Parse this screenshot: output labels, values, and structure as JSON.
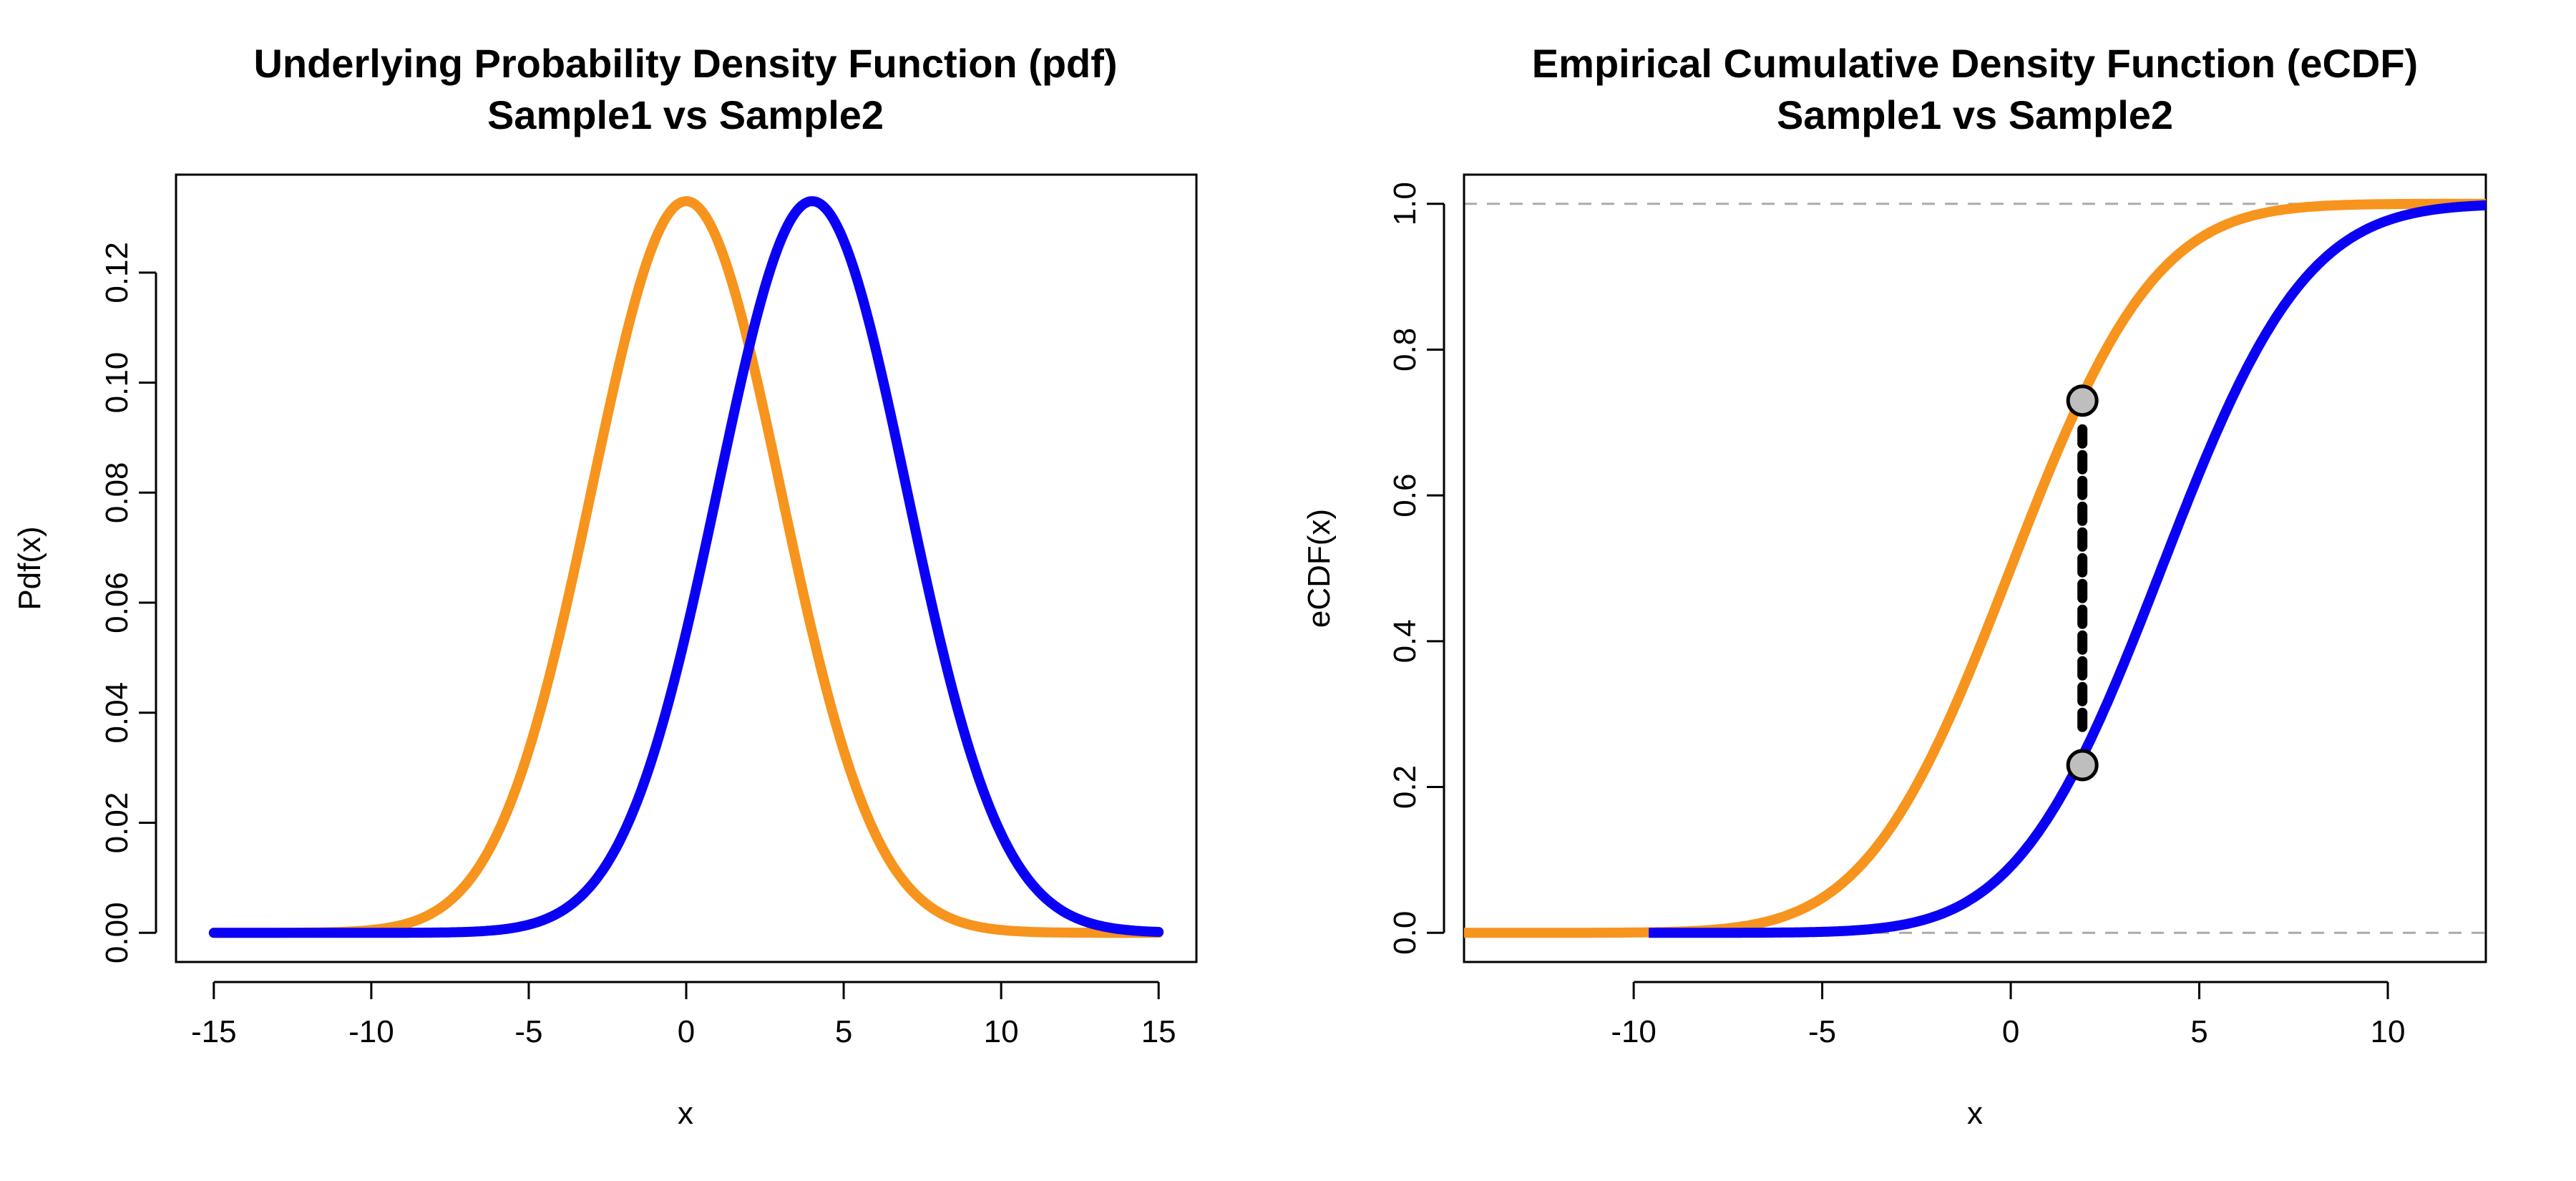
{
  "chart_data": [
    {
      "type": "line",
      "title_line1": "Underlying Probability Density Function (pdf)",
      "title_line2": "Sample1 vs Sample2",
      "xlabel": "x",
      "ylabel": "Pdf(x)",
      "xlim": [
        -16.2,
        16.2
      ],
      "ylim": [
        -0.0053,
        0.1378
      ],
      "x_ticks": [
        -15,
        -10,
        -5,
        0,
        5,
        10,
        15
      ],
      "x_tick_labels": [
        "-15",
        "-10",
        "-5",
        "0",
        "5",
        "10",
        "15"
      ],
      "y_ticks": [
        0,
        0.02,
        0.04,
        0.06,
        0.08,
        0.1,
        0.12
      ],
      "y_tick_labels": [
        "0.00",
        "0.02",
        "0.04",
        "0.06",
        "0.08",
        "0.10",
        "0.12"
      ],
      "x_range": [
        -15,
        15
      ],
      "series": [
        {
          "name": "Sample1",
          "color": "#F7941D",
          "mean": 0,
          "sd": 3
        },
        {
          "name": "Sample2",
          "color": "#0A00F5",
          "mean": 4,
          "sd": 3
        }
      ]
    },
    {
      "type": "line",
      "title_line1": "Empirical Cumulative Density Function (eCDF)",
      "title_line2": "Sample1 vs Sample2",
      "xlabel": "x",
      "ylabel": "eCDF(x)",
      "xlim": [
        -14.5,
        12.6
      ],
      "ylim": [
        -0.04,
        1.04
      ],
      "x_ticks": [
        -10,
        -5,
        0,
        5,
        10
      ],
      "x_tick_labels": [
        "-10",
        "-5",
        "0",
        "5",
        "10"
      ],
      "y_ticks": [
        0,
        0.2,
        0.4,
        0.6,
        0.8,
        1.0
      ],
      "y_tick_labels": [
        "0.0",
        "0.2",
        "0.4",
        "0.6",
        "0.8",
        "1.0"
      ],
      "reference_lines": [
        0,
        1
      ],
      "series": [
        {
          "name": "Sample1",
          "color": "#F7941D",
          "mean": 0,
          "sd": 3,
          "x_range": [
            -14.5,
            12.6
          ]
        },
        {
          "name": "Sample2",
          "color": "#0A00F5",
          "mean": 4,
          "sd": 3,
          "x_range": [
            -9.6,
            12.6
          ]
        }
      ],
      "ks_segment": {
        "x": 1.9,
        "y_top": 0.73,
        "y_bottom": 0.23,
        "marker_color": "#BEBEBE"
      }
    }
  ]
}
